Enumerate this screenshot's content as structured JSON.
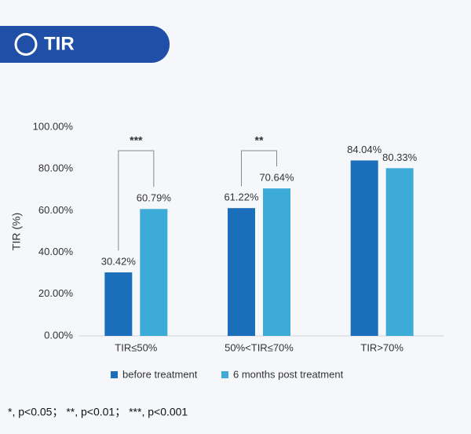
{
  "chart_data": {
    "type": "bar",
    "header": "TIR",
    "ylabel": "TIR (%)",
    "categories": [
      "TIR≤50%",
      "50%<TIR≤70%",
      "TIR>70%"
    ],
    "series": [
      {
        "name": "before treatment",
        "color": "#1b6fba",
        "values": [
          30.42,
          61.22,
          84.04
        ],
        "value_labels": [
          "30.42%",
          "61.22%",
          "84.04%"
        ]
      },
      {
        "name": "6 months post treatment",
        "color": "#3cabd8",
        "values": [
          60.79,
          70.64,
          80.33
        ],
        "value_labels": [
          "60.79%",
          "70.64%",
          "80.33%"
        ]
      }
    ],
    "annotations": [
      "***",
      "**"
    ],
    "ylim": [
      0,
      100
    ],
    "yticks": [
      {
        "value": 0,
        "label": "0.00%"
      },
      {
        "value": 20,
        "label": "20.00%"
      },
      {
        "value": 40,
        "label": "40.00%"
      },
      {
        "value": 60,
        "label": "60.00%"
      },
      {
        "value": 80,
        "label": "80.00%"
      },
      {
        "value": 100,
        "label": "100.00%"
      }
    ],
    "footnote": "*, p<0.05； **, p<0.01； ***, p<0.001"
  }
}
